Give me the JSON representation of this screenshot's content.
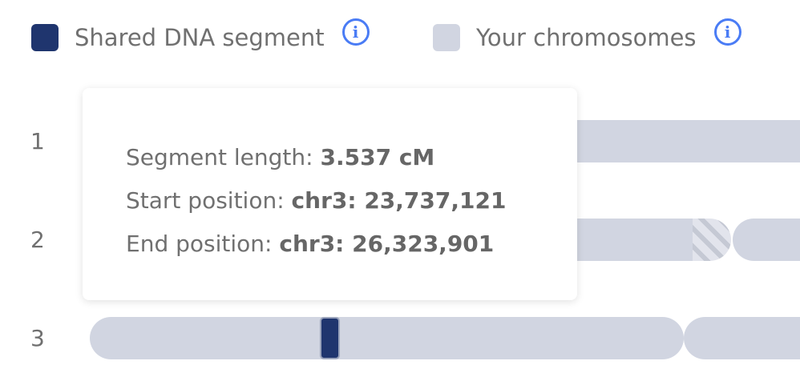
{
  "legend": [
    {
      "label": "Shared DNA segment",
      "color": "#1f356e",
      "icon": "info-icon"
    },
    {
      "label": "Your chromosomes",
      "color": "#d1d5e1",
      "icon": "info-icon"
    }
  ],
  "chromosomes": [
    {
      "label": "1"
    },
    {
      "label": "2"
    },
    {
      "label": "3"
    }
  ],
  "tooltip": {
    "length_label": "Segment length:",
    "length_value": "3.537 cM",
    "start_label": "Start position:",
    "start_value": "chr3: 23,737,121",
    "end_label": "End position:",
    "end_value": "chr3: 26,323,901"
  },
  "info_glyph": "i"
}
